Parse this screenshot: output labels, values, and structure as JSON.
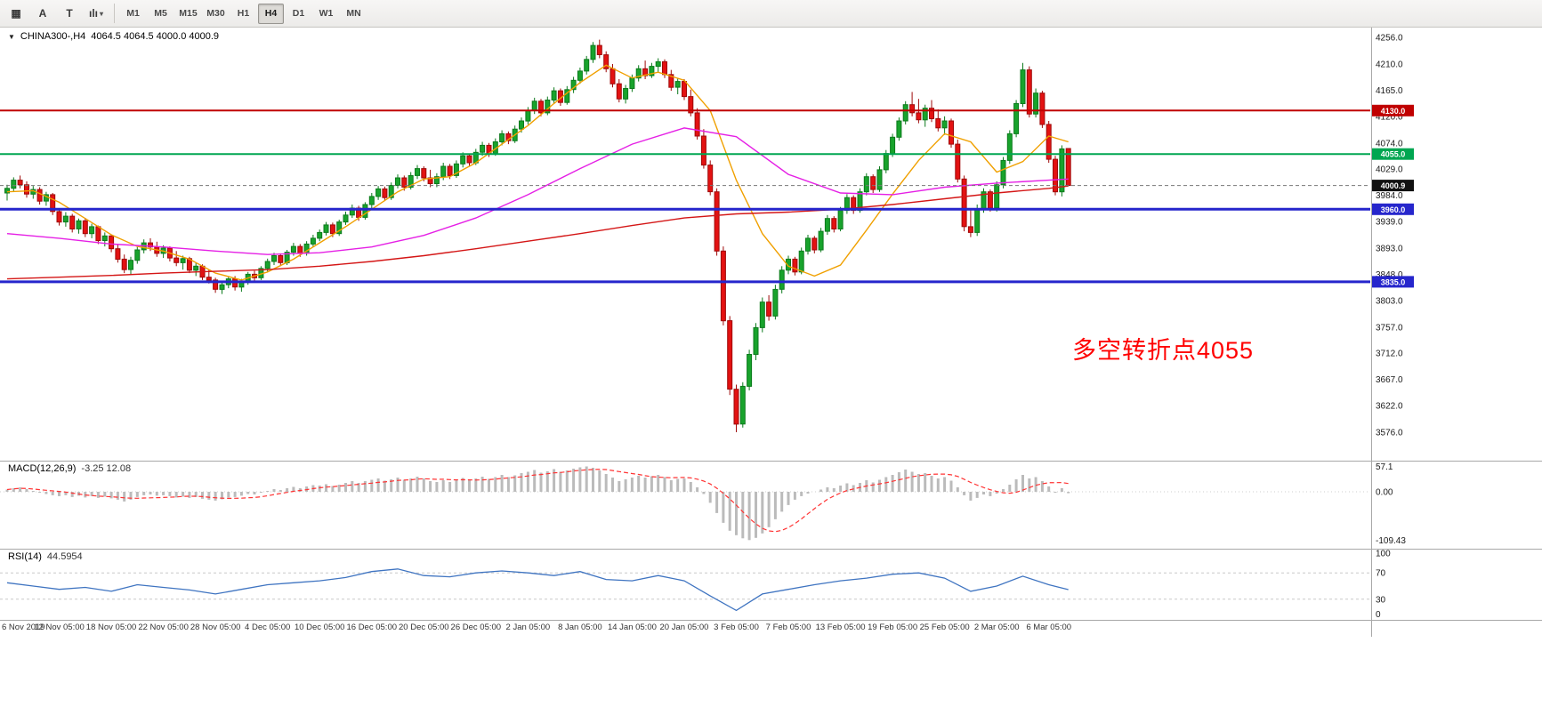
{
  "toolbar": {
    "icon_buttons": [
      {
        "name": "pattern-button",
        "icon": "pattern-grid-icon",
        "glyph": "▦"
      },
      {
        "name": "ask-line-button",
        "icon": "letter-a-icon",
        "glyph": "A"
      },
      {
        "name": "text-label-button",
        "icon": "letter-t-icon",
        "glyph": "T"
      },
      {
        "name": "chart-template-button",
        "icon": "mini-bars-icon",
        "glyph": "ılı",
        "has_dropdown": true
      }
    ],
    "dropdown_glyph": "▾",
    "timeframes": [
      "M1",
      "M5",
      "M15",
      "M30",
      "H1",
      "H4",
      "D1",
      "W1",
      "MN"
    ],
    "active_timeframe": "H4"
  },
  "chart": {
    "collapse_icon": "▼",
    "title_symbol": "CHINA300-,H4",
    "title_ohlc": "4064.5 4064.5 4000.0 4000.9",
    "annotation": "多空转折点4055",
    "annotation_color": "#ff0000",
    "price_axis": [
      "4256.0",
      "4210.0",
      "4165.0",
      "4120.0",
      "4074.0",
      "4029.0",
      "3984.0",
      "3939.0",
      "3893.0",
      "3848.0",
      "3803.0",
      "3757.0",
      "3712.0",
      "3667.0",
      "3622.0",
      "3576.0"
    ]
  },
  "macd": {
    "name": "MACD(12,26,9)",
    "values_text": "-3.25 12.08",
    "axis_labels": [
      "57.1",
      "0.00",
      "-109.43"
    ]
  },
  "rsi": {
    "name": "RSI(14)",
    "value_text": "44.5954",
    "axis_labels": [
      "100",
      "70",
      "30",
      "0"
    ]
  },
  "time_axis": [
    "6 Nov 2019",
    "12 Nov 05:00",
    "18 Nov 05:00",
    "22 Nov 05:00",
    "28 Nov 05:00",
    "4 Dec 05:00",
    "10 Dec 05:00",
    "16 Dec 05:00",
    "20 Dec 05:00",
    "26 Dec 05:00",
    "2 Jan 05:00",
    "8 Jan 05:00",
    "14 Jan 05:00",
    "20 Jan 05:00",
    "3 Feb 05:00",
    "7 Feb 05:00",
    "13 Feb 05:00",
    "19 Feb 05:00",
    "25 Feb 05:00",
    "2 Mar 05:00",
    "6 Mar 05:00"
  ],
  "colors": {
    "bull": "#18a32c",
    "bull_border": "#0c7a1c",
    "bear": "#e31212",
    "bear_border": "#9e0909",
    "current_tag": "#111111",
    "macd_bar": "#bbbbbb",
    "macd_signal": "#ff3333",
    "rsi_line": "#3f74c1"
  },
  "chart_data": {
    "type": "candlestick",
    "symbol": "CHINA300-",
    "timeframe": "H4",
    "price_range": [
      3576.0,
      4256.0
    ],
    "bars_per_label": 8,
    "candles": [
      [
        3988,
        4002,
        3975,
        3996
      ],
      [
        3996,
        4015,
        3990,
        4010
      ],
      [
        4010,
        4018,
        3996,
        4002
      ],
      [
        4002,
        4008,
        3980,
        3986
      ],
      [
        3986,
        4000,
        3978,
        3994
      ],
      [
        3994,
        3998,
        3968,
        3974
      ],
      [
        3974,
        3990,
        3966,
        3985
      ],
      [
        3985,
        3988,
        3950,
        3956
      ],
      [
        3956,
        3962,
        3932,
        3938
      ],
      [
        3938,
        3955,
        3930,
        3948
      ],
      [
        3948,
        3952,
        3920,
        3926
      ],
      [
        3926,
        3944,
        3918,
        3940
      ],
      [
        3940,
        3945,
        3912,
        3918
      ],
      [
        3918,
        3935,
        3910,
        3930
      ],
      [
        3930,
        3932,
        3900,
        3906
      ],
      [
        3906,
        3920,
        3896,
        3914
      ],
      [
        3914,
        3916,
        3886,
        3892
      ],
      [
        3892,
        3900,
        3868,
        3874
      ],
      [
        3874,
        3882,
        3850,
        3856
      ],
      [
        3856,
        3878,
        3848,
        3872
      ],
      [
        3872,
        3895,
        3866,
        3890
      ],
      [
        3890,
        3908,
        3884,
        3902
      ],
      [
        3902,
        3910,
        3888,
        3895
      ],
      [
        3895,
        3904,
        3878,
        3884
      ],
      [
        3884,
        3898,
        3876,
        3893
      ],
      [
        3893,
        3896,
        3870,
        3876
      ],
      [
        3876,
        3888,
        3862,
        3868
      ],
      [
        3868,
        3880,
        3856,
        3875
      ],
      [
        3875,
        3878,
        3850,
        3855
      ],
      [
        3855,
        3868,
        3845,
        3862
      ],
      [
        3862,
        3865,
        3838,
        3843
      ],
      [
        3843,
        3856,
        3832,
        3838
      ],
      [
        3838,
        3842,
        3816,
        3822
      ],
      [
        3822,
        3836,
        3814,
        3830
      ],
      [
        3830,
        3844,
        3824,
        3840
      ],
      [
        3840,
        3845,
        3820,
        3826
      ],
      [
        3826,
        3840,
        3818,
        3835
      ],
      [
        3835,
        3852,
        3830,
        3848
      ],
      [
        3848,
        3854,
        3836,
        3842
      ],
      [
        3842,
        3862,
        3838,
        3858
      ],
      [
        3858,
        3875,
        3852,
        3870
      ],
      [
        3870,
        3885,
        3864,
        3880
      ],
      [
        3880,
        3884,
        3862,
        3868
      ],
      [
        3868,
        3890,
        3864,
        3886
      ],
      [
        3886,
        3902,
        3880,
        3896
      ],
      [
        3896,
        3900,
        3878,
        3884
      ],
      [
        3884,
        3905,
        3880,
        3900
      ],
      [
        3900,
        3916,
        3895,
        3910
      ],
      [
        3910,
        3925,
        3905,
        3920
      ],
      [
        3920,
        3938,
        3915,
        3933
      ],
      [
        3933,
        3937,
        3912,
        3918
      ],
      [
        3918,
        3942,
        3914,
        3938
      ],
      [
        3938,
        3956,
        3933,
        3950
      ],
      [
        3950,
        3968,
        3945,
        3962
      ],
      [
        3962,
        3966,
        3940,
        3946
      ],
      [
        3946,
        3972,
        3942,
        3968
      ],
      [
        3968,
        3988,
        3962,
        3982
      ],
      [
        3982,
        4000,
        3976,
        3995
      ],
      [
        3995,
        3999,
        3974,
        3980
      ],
      [
        3980,
        4006,
        3976,
        4001
      ],
      [
        4001,
        4020,
        3996,
        4014
      ],
      [
        4014,
        4018,
        3992,
        3998
      ],
      [
        3998,
        4024,
        3994,
        4018
      ],
      [
        4018,
        4036,
        4012,
        4030
      ],
      [
        4030,
        4034,
        4008,
        4014
      ],
      [
        4014,
        4028,
        3998,
        4004
      ],
      [
        4004,
        4022,
        3998,
        4016
      ],
      [
        4016,
        4040,
        4010,
        4034
      ],
      [
        4034,
        4038,
        4012,
        4018
      ],
      [
        4018,
        4044,
        4014,
        4038
      ],
      [
        4038,
        4058,
        4032,
        4052
      ],
      [
        4052,
        4056,
        4034,
        4040
      ],
      [
        4040,
        4064,
        4036,
        4058
      ],
      [
        4058,
        4076,
        4052,
        4070
      ],
      [
        4070,
        4074,
        4050,
        4056
      ],
      [
        4056,
        4082,
        4052,
        4076
      ],
      [
        4076,
        4096,
        4070,
        4090
      ],
      [
        4090,
        4094,
        4072,
        4078
      ],
      [
        4078,
        4104,
        4074,
        4098
      ],
      [
        4098,
        4118,
        4092,
        4112
      ],
      [
        4112,
        4136,
        4106,
        4130
      ],
      [
        4130,
        4152,
        4124,
        4146
      ],
      [
        4146,
        4150,
        4120,
        4126
      ],
      [
        4126,
        4154,
        4122,
        4148
      ],
      [
        4148,
        4170,
        4142,
        4164
      ],
      [
        4164,
        4168,
        4138,
        4144
      ],
      [
        4144,
        4172,
        4140,
        4166
      ],
      [
        4166,
        4188,
        4160,
        4182
      ],
      [
        4182,
        4204,
        4176,
        4198
      ],
      [
        4198,
        4224,
        4192,
        4218
      ],
      [
        4218,
        4248,
        4212,
        4242
      ],
      [
        4242,
        4252,
        4220,
        4226
      ],
      [
        4226,
        4232,
        4196,
        4202
      ],
      [
        4202,
        4210,
        4170,
        4176
      ],
      [
        4176,
        4184,
        4144,
        4150
      ],
      [
        4150,
        4174,
        4142,
        4168
      ],
      [
        4168,
        4192,
        4162,
        4186
      ],
      [
        4186,
        4208,
        4180,
        4202
      ],
      [
        4202,
        4216,
        4184,
        4190
      ],
      [
        4190,
        4212,
        4186,
        4206
      ],
      [
        4206,
        4220,
        4196,
        4214
      ],
      [
        4214,
        4218,
        4186,
        4192
      ],
      [
        4192,
        4200,
        4164,
        4170
      ],
      [
        4170,
        4186,
        4158,
        4180
      ],
      [
        4180,
        4184,
        4148,
        4154
      ],
      [
        4154,
        4166,
        4120,
        4126
      ],
      [
        4126,
        4134,
        4080,
        4086
      ],
      [
        4086,
        4098,
        4030,
        4036
      ],
      [
        4036,
        4044,
        3984,
        3990
      ],
      [
        3990,
        3996,
        3880,
        3888
      ],
      [
        3888,
        3896,
        3760,
        3768
      ],
      [
        3768,
        3776,
        3640,
        3650
      ],
      [
        3650,
        3658,
        3576,
        3590
      ],
      [
        3590,
        3662,
        3584,
        3655
      ],
      [
        3655,
        3718,
        3648,
        3710
      ],
      [
        3710,
        3764,
        3700,
        3756
      ],
      [
        3756,
        3808,
        3748,
        3800
      ],
      [
        3800,
        3812,
        3768,
        3776
      ],
      [
        3776,
        3830,
        3770,
        3822
      ],
      [
        3822,
        3862,
        3815,
        3855
      ],
      [
        3855,
        3880,
        3848,
        3874
      ],
      [
        3874,
        3878,
        3846,
        3852
      ],
      [
        3852,
        3894,
        3848,
        3888
      ],
      [
        3888,
        3916,
        3882,
        3910
      ],
      [
        3910,
        3914,
        3884,
        3890
      ],
      [
        3890,
        3928,
        3886,
        3922
      ],
      [
        3922,
        3950,
        3916,
        3944
      ],
      [
        3944,
        3948,
        3920,
        3926
      ],
      [
        3926,
        3964,
        3922,
        3958
      ],
      [
        3958,
        3986,
        3952,
        3980
      ],
      [
        3980,
        3984,
        3952,
        3958
      ],
      [
        3958,
        3996,
        3954,
        3990
      ],
      [
        3990,
        4022,
        3984,
        4016
      ],
      [
        4016,
        4020,
        3988,
        3994
      ],
      [
        3994,
        4034,
        3990,
        4028
      ],
      [
        4028,
        4062,
        4022,
        4056
      ],
      [
        4056,
        4090,
        4050,
        4084
      ],
      [
        4084,
        4118,
        4078,
        4112
      ],
      [
        4112,
        4146,
        4106,
        4140
      ],
      [
        4140,
        4162,
        4120,
        4126
      ],
      [
        4126,
        4150,
        4108,
        4114
      ],
      [
        4114,
        4140,
        4102,
        4134
      ],
      [
        4134,
        4148,
        4110,
        4116
      ],
      [
        4116,
        4132,
        4094,
        4100
      ],
      [
        4100,
        4120,
        4088,
        4112
      ],
      [
        4112,
        4116,
        4066,
        4072
      ],
      [
        4072,
        4080,
        4006,
        4012
      ],
      [
        4012,
        4018,
        3922,
        3930
      ],
      [
        3930,
        3958,
        3912,
        3920
      ],
      [
        3920,
        3968,
        3914,
        3960
      ],
      [
        3960,
        3996,
        3954,
        3990
      ],
      [
        3990,
        3994,
        3956,
        3962
      ],
      [
        3962,
        4008,
        3956,
        4002
      ],
      [
        4002,
        4050,
        3996,
        4044
      ],
      [
        4044,
        4096,
        4038,
        4090
      ],
      [
        4090,
        4148,
        4084,
        4142
      ],
      [
        4142,
        4212,
        4136,
        4200
      ],
      [
        4200,
        4206,
        4118,
        4124
      ],
      [
        4124,
        4168,
        4118,
        4160
      ],
      [
        4160,
        4164,
        4100,
        4106
      ],
      [
        4106,
        4112,
        4040,
        4046
      ],
      [
        4046,
        4052,
        3984,
        3990
      ],
      [
        3990,
        4070,
        3982,
        4064
      ],
      [
        4064.5,
        4064.5,
        4000.0,
        4000.9
      ]
    ],
    "moving_averages": [
      {
        "name": "ma-fast",
        "color": "#f0a000",
        "step": 4,
        "values": [
          3990,
          3992,
          3972,
          3944,
          3916,
          3896,
          3888,
          3874,
          3850,
          3838,
          3852,
          3874,
          3902,
          3930,
          3960,
          3990,
          4012,
          4016,
          4040,
          4072,
          4104,
          4142,
          4178,
          4208,
          4186,
          4196,
          4182,
          4130,
          4010,
          3918,
          3862,
          3845,
          3864,
          3924,
          3986,
          4044,
          4090,
          4076,
          4024,
          4042,
          4086,
          4076
        ]
      },
      {
        "name": "ma-medium",
        "color": "#e520e5",
        "step": 8,
        "values": [
          3918,
          3910,
          3900,
          3895,
          3888,
          3882,
          3885,
          3895,
          3915,
          3945,
          3985,
          4030,
          4072,
          4100,
          4085,
          4020,
          3988,
          3985,
          3998,
          4005,
          4010,
          4012
        ]
      },
      {
        "name": "ma-slow",
        "color": "#d41616",
        "step": 8,
        "values": [
          3840,
          3843,
          3846,
          3850,
          3853,
          3856,
          3862,
          3870,
          3880,
          3892,
          3905,
          3918,
          3932,
          3945,
          3952,
          3955,
          3960,
          3968,
          3978,
          3988,
          3996,
          4000
        ]
      }
    ],
    "levels": [
      {
        "price": 4130.0,
        "label": "4130.0",
        "color": "#c00000",
        "width": 2
      },
      {
        "price": 4055.0,
        "label": "4055.0",
        "color": "#00a651",
        "width": 2
      },
      {
        "price": 3960.0,
        "label": "3960.0",
        "color": "#2626cc",
        "width": 3
      },
      {
        "price": 3835.0,
        "label": "3835.0",
        "color": "#2626cc",
        "width": 3
      }
    ],
    "current_price": {
      "price": 4000.9,
      "label": "4000.9"
    },
    "macd": {
      "range": [
        -109.43,
        57.1
      ],
      "values": [
        5,
        8,
        10,
        6,
        2,
        -2,
        -5,
        -8,
        -10,
        -8,
        -12,
        -9,
        -13,
        -10,
        -14,
        -11,
        -15,
        -18,
        -22,
        -18,
        -12,
        -8,
        -6,
        -9,
        -8,
        -10,
        -13,
        -11,
        -14,
        -12,
        -16,
        -18,
        -20,
        -17,
        -13,
        -12,
        -9,
        -5,
        -6,
        -2,
        2,
        6,
        4,
        8,
        11,
        8,
        12,
        15,
        14,
        17,
        13,
        16,
        20,
        24,
        20,
        24,
        27,
        30,
        25,
        28,
        32,
        27,
        30,
        34,
        30,
        24,
        22,
        26,
        22,
        26,
        31,
        27,
        30,
        34,
        29,
        33,
        38,
        33,
        37,
        42,
        45,
        49,
        43,
        46,
        51,
        45,
        48,
        52,
        55,
        57,
        54,
        48,
        40,
        32,
        24,
        28,
        32,
        36,
        32,
        35,
        38,
        33,
        26,
        29,
        30,
        22,
        10,
        -5,
        -25,
        -48,
        -70,
        -88,
        -98,
        -105,
        -109,
        -104,
        -94,
        -80,
        -62,
        -45,
        -30,
        -18,
        -10,
        -4,
        0,
        5,
        10,
        8,
        14,
        19,
        15,
        20,
        26,
        21,
        27,
        33,
        38,
        44,
        50,
        45,
        40,
        42,
        36,
        30,
        33,
        25,
        10,
        -8,
        -20,
        -14,
        -6,
        -10,
        -4,
        6,
        16,
        28,
        38,
        30,
        33,
        24,
        12,
        -2,
        8,
        -3.25
      ]
    },
    "rsi": {
      "range": [
        0,
        100
      ],
      "levels": [
        70,
        30
      ],
      "step": 4,
      "values": [
        55,
        50,
        45,
        48,
        42,
        52,
        48,
        44,
        38,
        45,
        52,
        55,
        58,
        63,
        72,
        76,
        66,
        64,
        70,
        73,
        70,
        66,
        72,
        60,
        58,
        66,
        58,
        35,
        13,
        38,
        45,
        52,
        58,
        62,
        68,
        70,
        62,
        42,
        50,
        65,
        52,
        44.6
      ]
    }
  }
}
